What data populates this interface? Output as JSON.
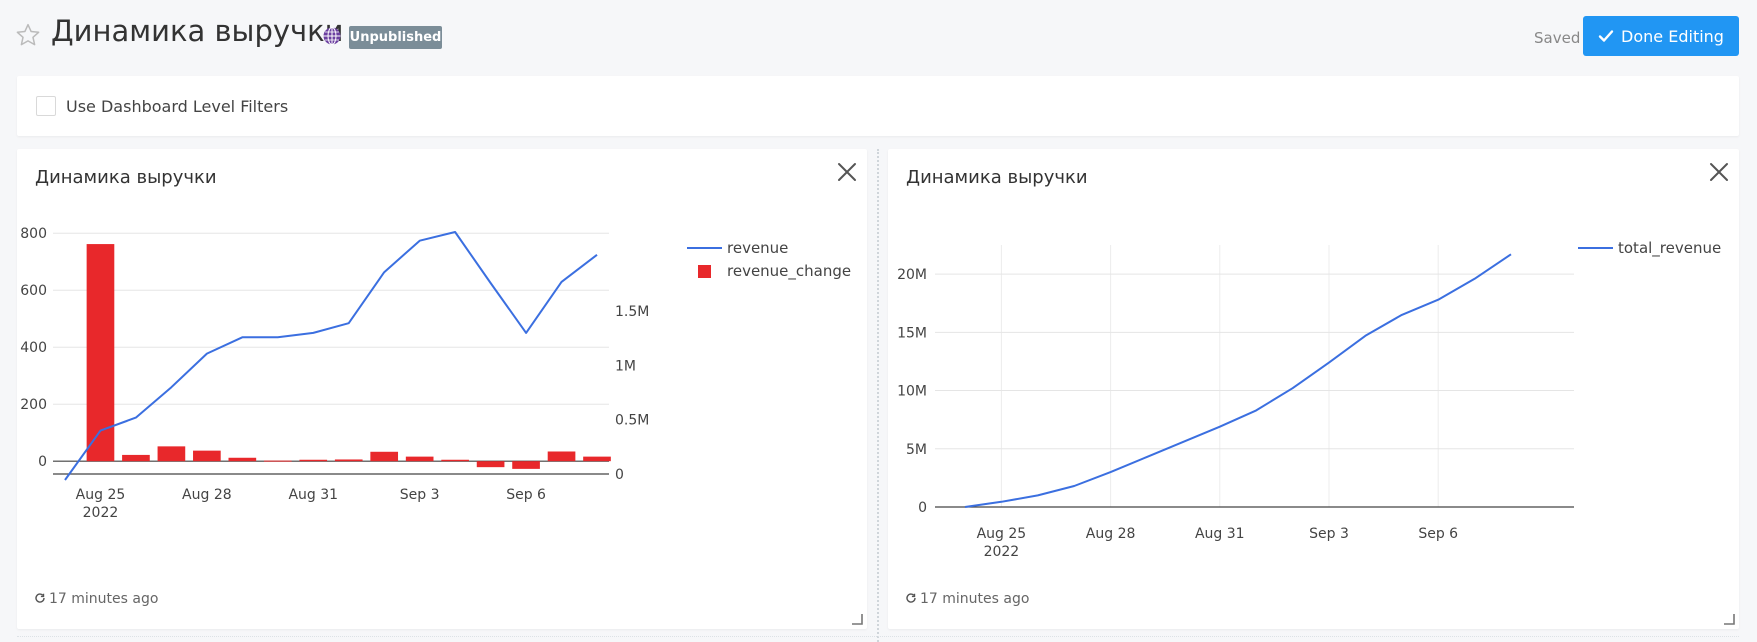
{
  "header": {
    "title": "Динамика выручки",
    "badge": "Unpublished",
    "saved_label": "Saved",
    "done_button": "Done Editing",
    "icons": [
      "star-icon",
      "globe-icon",
      "check-icon"
    ]
  },
  "filters": {
    "label": "Use Dashboard Level Filters",
    "checked": false
  },
  "widgets": [
    {
      "title": "Динамика выручки",
      "updated": "17 minutes ago"
    },
    {
      "title": "Динамика выручки",
      "updated": "17 minutes ago"
    }
  ],
  "colors": {
    "line": "#3b6fe0",
    "bar": "#e8282b",
    "accent": "#2196f3",
    "badge": "#7b8d98"
  },
  "chart_data": [
    {
      "type": "bar",
      "title": "Динамика выручки",
      "x_ticks": [
        {
          "date": "2022-08-25",
          "label": "Aug 25",
          "sublabel": "2022"
        },
        {
          "date": "2022-08-28",
          "label": "Aug 28"
        },
        {
          "date": "2022-08-31",
          "label": "Aug 31"
        },
        {
          "date": "2022-09-03",
          "label": "Sep 3"
        },
        {
          "date": "2022-09-06",
          "label": "Sep 6"
        }
      ],
      "y_left": {
        "ticks": [
          "0",
          "200",
          "400",
          "600",
          "800"
        ],
        "range": [
          -45,
          850
        ]
      },
      "y_right": {
        "ticks": [
          "0",
          "0.5M",
          "1M",
          "1.5M"
        ],
        "range": [
          0,
          2350000
        ]
      },
      "legend": [
        "revenue",
        "revenue_change"
      ],
      "series": [
        {
          "name": "revenue",
          "kind": "line",
          "axis": "right",
          "x": [
            "2022-08-24",
            "2022-08-25",
            "2022-08-26",
            "2022-08-27",
            "2022-08-28",
            "2022-08-29",
            "2022-08-30",
            "2022-08-31",
            "2022-09-01",
            "2022-09-02",
            "2022-09-03",
            "2022-09-04",
            "2022-09-05",
            "2022-09-06",
            "2022-09-07",
            "2022-09-08"
          ],
          "values": [
            -55000,
            400000,
            520000,
            800000,
            1110000,
            1260000,
            1260000,
            1300000,
            1390000,
            1860000,
            2150000,
            2230000,
            1760000,
            1300000,
            1770000,
            2020000
          ]
        },
        {
          "name": "revenue_change",
          "kind": "bar",
          "axis": "left",
          "x": [
            "2022-08-25",
            "2022-08-26",
            "2022-08-27",
            "2022-08-28",
            "2022-08-29",
            "2022-08-30",
            "2022-08-31",
            "2022-09-01",
            "2022-09-02",
            "2022-09-03",
            "2022-09-04",
            "2022-09-05",
            "2022-09-06",
            "2022-09-07",
            "2022-09-08"
          ],
          "values": [
            762,
            22,
            52,
            37,
            12,
            2,
            5,
            6,
            33,
            16,
            5,
            -21,
            -27,
            34,
            16
          ]
        }
      ]
    },
    {
      "type": "line",
      "title": "Динамика выручки",
      "x_ticks": [
        {
          "date": "2022-08-25",
          "label": "Aug 25",
          "sublabel": "2022"
        },
        {
          "date": "2022-08-28",
          "label": "Aug 28"
        },
        {
          "date": "2022-08-31",
          "label": "Aug 31"
        },
        {
          "date": "2022-09-03",
          "label": "Sep 3"
        },
        {
          "date": "2022-09-06",
          "label": "Sep 6"
        }
      ],
      "y": {
        "ticks": [
          "0",
          "5M",
          "10M",
          "15M",
          "20M"
        ],
        "range": [
          0,
          22500000
        ]
      },
      "legend": [
        "total_revenue"
      ],
      "series": [
        {
          "name": "total_revenue",
          "kind": "line",
          "x": [
            "2022-08-24",
            "2022-08-25",
            "2022-08-26",
            "2022-08-27",
            "2022-08-28",
            "2022-08-29",
            "2022-08-30",
            "2022-08-31",
            "2022-09-01",
            "2022-09-02",
            "2022-09-03",
            "2022-09-04",
            "2022-09-05",
            "2022-09-06",
            "2022-09-07",
            "2022-09-08"
          ],
          "values": [
            0,
            450000,
            1000000,
            1800000,
            3000000,
            4300000,
            5600000,
            6900000,
            8300000,
            10200000,
            12400000,
            14700000,
            16500000,
            17800000,
            19600000,
            21700000
          ]
        }
      ]
    }
  ]
}
